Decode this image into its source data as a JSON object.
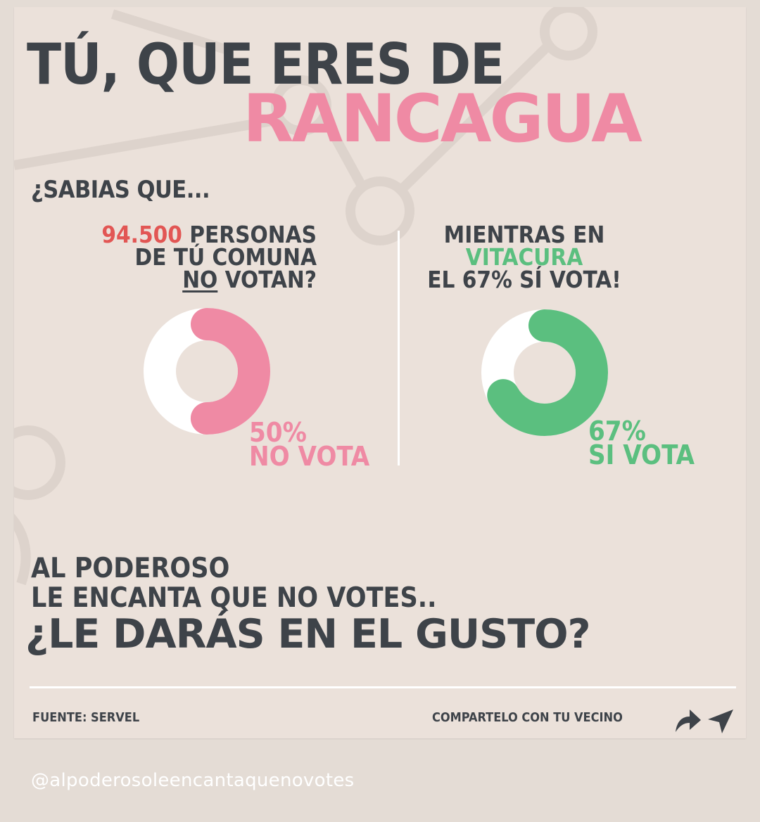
{
  "header": {
    "line1": "TÚ, QUE ERES DE",
    "line2": "RANCAGUA"
  },
  "subtitle": "¿SABIAS QUE...",
  "left_stat": {
    "number": "94.500",
    "text1": "PERSONAS",
    "text2": "DE TÚ COMUNA",
    "no": "NO",
    "votan": "VOTAN?"
  },
  "right_stat": {
    "text1": "MIENTRAS EN",
    "place": "VITACURA",
    "text3": "EL 67% SÍ VOTA!"
  },
  "chart_data": [
    {
      "type": "pie",
      "values": [
        50,
        50
      ],
      "categories": [
        "NO VOTA",
        ""
      ],
      "colors": [
        "#ef8aa4",
        "#ffffff"
      ],
      "label_value": "50%",
      "label_text": "NO VOTA"
    },
    {
      "type": "pie",
      "values": [
        67,
        33
      ],
      "categories": [
        "SI VOTA",
        ""
      ],
      "colors": [
        "#5bbf7f",
        "#ffffff"
      ],
      "label_value": "67%",
      "label_text": "SI VOTA"
    }
  ],
  "bottom": {
    "line1": "AL PODEROSO",
    "line2": "LE ENCANTA QUE NO VOTES..",
    "cta": "¿LE DARÁS EN EL GUSTO?"
  },
  "footer": {
    "source": "FUENTE: SERVEL",
    "share": "COMPARTELO CON TU VECINO",
    "share_icon": "share-arrow-icon",
    "send_icon": "send-icon"
  },
  "handle": "@alpoderosoleencantaquenovotes",
  "colors": {
    "pink": "#ef8aa4",
    "green": "#5bbf7f",
    "red": "#e25654",
    "dark": "#3e4349",
    "background": "#ebe1da"
  }
}
